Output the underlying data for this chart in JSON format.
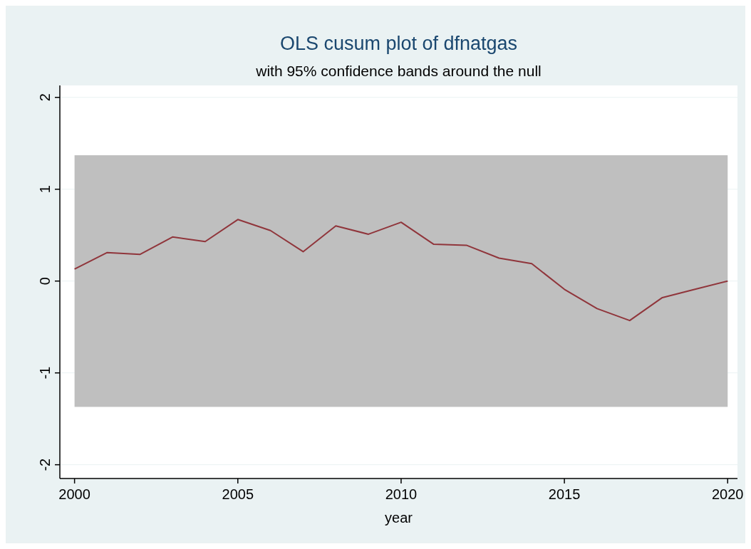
{
  "chart_data": {
    "type": "line",
    "title": "OLS cusum plot of dfnatgas",
    "subtitle": "with 95% confidence bands around the null",
    "xlabel": "year",
    "x": [
      2000,
      2001,
      2002,
      2003,
      2004,
      2005,
      2006,
      2007,
      2008,
      2009,
      2010,
      2011,
      2012,
      2013,
      2014,
      2015,
      2016,
      2017,
      2018,
      2019,
      2020
    ],
    "series": [
      {
        "color": "#90353b",
        "values": [
          0.13,
          0.31,
          0.29,
          0.48,
          0.43,
          0.67,
          0.55,
          0.32,
          0.6,
          0.51,
          0.64,
          0.4,
          0.39,
          0.25,
          0.19,
          -0.09,
          -0.3,
          -0.43,
          -0.18,
          -0.09,
          0
        ]
      }
    ],
    "bands": [
      {
        "axis": "y",
        "from": -1.37,
        "to": 1.37,
        "color": "#bfbfbf"
      }
    ],
    "xlim": [
      1999.55,
      2020.3
    ],
    "xticks": [
      2000,
      2005,
      2010,
      2015,
      2020
    ],
    "ylim": [
      -2.15,
      2.13
    ],
    "yticks": [
      -2,
      -1,
      0,
      1,
      2
    ],
    "grid": "y"
  }
}
